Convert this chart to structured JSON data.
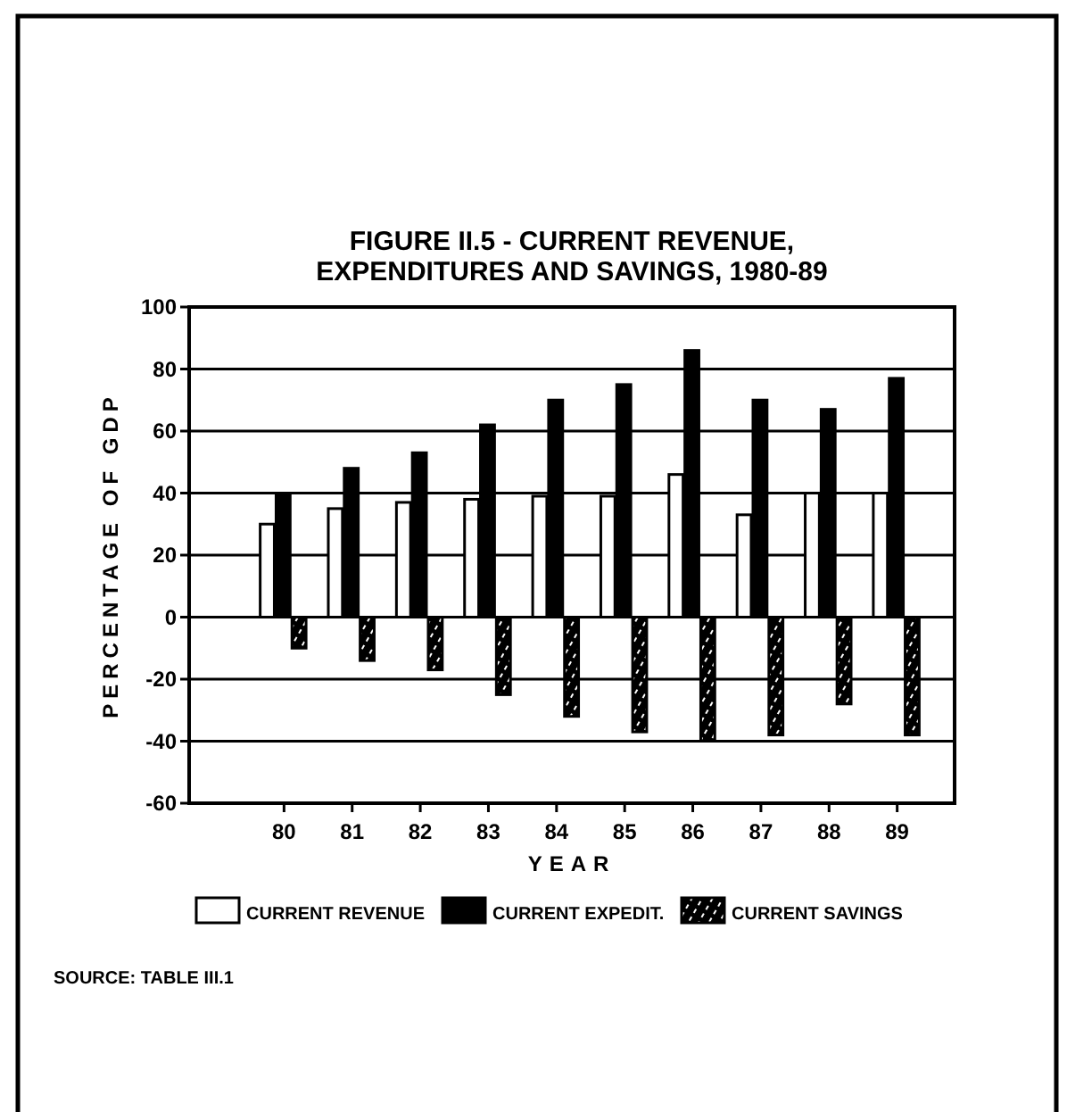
{
  "chart_data": {
    "type": "bar",
    "title": "FIGURE II.5 - CURRENT REVENUE,\nEXPENDITURES AND SAVINGS, 1980-89",
    "xlabel": "YEAR",
    "ylabel": "PERCENTAGE OF GDP",
    "categories": [
      "80",
      "81",
      "82",
      "83",
      "84",
      "85",
      "86",
      "87",
      "88",
      "89"
    ],
    "series": [
      {
        "name": "CURRENT REVENUE",
        "color": "#ffffff",
        "values": [
          30,
          35,
          37,
          38,
          39,
          39,
          46,
          33,
          40,
          40
        ]
      },
      {
        "name": "CURRENT EXPEDIT.",
        "color": "#000000",
        "values": [
          40,
          48,
          53,
          62,
          70,
          75,
          86,
          70,
          67,
          77
        ]
      },
      {
        "name": "CURRENT SAVINGS",
        "color": "#000000",
        "values": [
          -10,
          -14,
          -17,
          -25,
          -32,
          -37,
          -40,
          -38,
          -28,
          -38
        ]
      }
    ],
    "ylim": [
      -60,
      100
    ],
    "yticks": [
      -60,
      -40,
      -20,
      0,
      20,
      40,
      60,
      80,
      100
    ],
    "grid": "y",
    "legend": "bottom",
    "annotations": [
      "SOURCE: TABLE III.1"
    ]
  }
}
